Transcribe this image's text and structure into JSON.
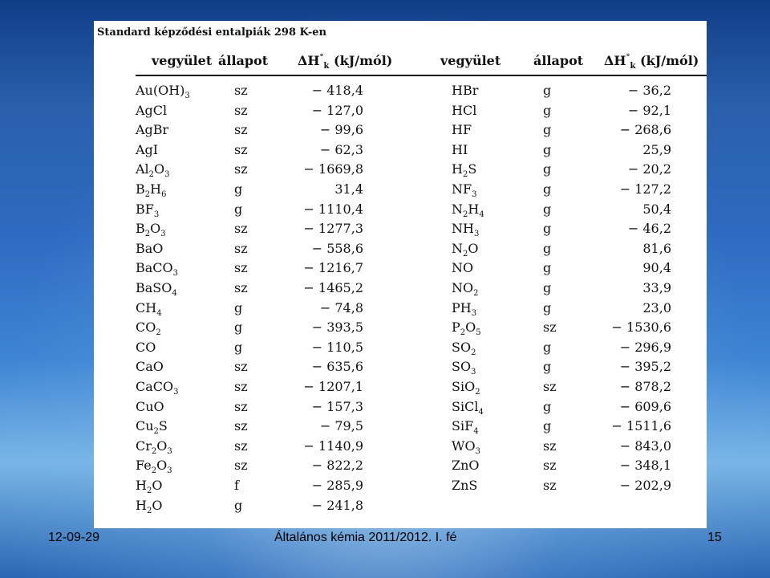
{
  "caption": "Standard képződési entalpiák 298 K-en",
  "headers": {
    "compound": "vegyület",
    "state": "állapot",
    "enthalpy": "ΔH°k (kJ/mól)"
  },
  "left_rows": [
    {
      "formula": "Au(OH)3",
      "state": "sz",
      "value": "− 418,4"
    },
    {
      "formula": "AgCl",
      "state": "sz",
      "value": "− 127,0"
    },
    {
      "formula": "AgBr",
      "state": "sz",
      "value": "− 99,6"
    },
    {
      "formula": "AgI",
      "state": "sz",
      "value": "− 62,3"
    },
    {
      "formula": "Al2O3",
      "state": "sz",
      "value": "− 1669,8"
    },
    {
      "formula": "B2H6",
      "state": "g",
      "value": "31,4"
    },
    {
      "formula": "BF3",
      "state": "g",
      "value": "− 1110,4"
    },
    {
      "formula": "B2O3",
      "state": "sz",
      "value": "− 1277,3"
    },
    {
      "formula": "BaO",
      "state": "sz",
      "value": "− 558,6"
    },
    {
      "formula": "BaCO3",
      "state": "sz",
      "value": "− 1216,7"
    },
    {
      "formula": "BaSO4",
      "state": "sz",
      "value": "− 1465,2"
    },
    {
      "formula": "CH4",
      "state": "g",
      "value": "− 74,8"
    },
    {
      "formula": "CO2",
      "state": "g",
      "value": "− 393,5"
    },
    {
      "formula": "CO",
      "state": "g",
      "value": "− 110,5"
    },
    {
      "formula": "CaO",
      "state": "sz",
      "value": "− 635,6"
    },
    {
      "formula": "CaCO3",
      "state": "sz",
      "value": "− 1207,1"
    },
    {
      "formula": "CuO",
      "state": "sz",
      "value": "− 157,3"
    },
    {
      "formula": "Cu2S",
      "state": "sz",
      "value": "− 79,5"
    },
    {
      "formula": "Cr2O3",
      "state": "sz",
      "value": "− 1140,9"
    },
    {
      "formula": "Fe2O3",
      "state": "sz",
      "value": "− 822,2"
    },
    {
      "formula": "H2O",
      "state": "f",
      "value": "− 285,9"
    },
    {
      "formula": "H2O",
      "state": "g",
      "value": "− 241,8"
    }
  ],
  "right_rows": [
    {
      "formula": "HBr",
      "state": "g",
      "value": "− 36,2"
    },
    {
      "formula": "HCl",
      "state": "g",
      "value": "− 92,1"
    },
    {
      "formula": "HF",
      "state": "g",
      "value": "− 268,6"
    },
    {
      "formula": "HI",
      "state": "g",
      "value": "25,9"
    },
    {
      "formula": "H2S",
      "state": "g",
      "value": "− 20,2"
    },
    {
      "formula": "NF3",
      "state": "g",
      "value": "− 127,2"
    },
    {
      "formula": "N2H4",
      "state": "g",
      "value": "50,4"
    },
    {
      "formula": "NH3",
      "state": "g",
      "value": "− 46,2"
    },
    {
      "formula": "N2O",
      "state": "g",
      "value": "81,6"
    },
    {
      "formula": "NO",
      "state": "g",
      "value": "90,4"
    },
    {
      "formula": "NO2",
      "state": "g",
      "value": "33,9"
    },
    {
      "formula": "PH3",
      "state": "g",
      "value": "23,0"
    },
    {
      "formula": "P2O5",
      "state": "sz",
      "value": "− 1530,6"
    },
    {
      "formula": "SO2",
      "state": "g",
      "value": "− 296,9"
    },
    {
      "formula": "SO3",
      "state": "g",
      "value": "− 395,2"
    },
    {
      "formula": "SiO2",
      "state": "sz",
      "value": "− 878,2"
    },
    {
      "formula": "SiCl4",
      "state": "g",
      "value": "− 609,6"
    },
    {
      "formula": "SiF4",
      "state": "g",
      "value": "− 1511,6"
    },
    {
      "formula": "WO3",
      "state": "sz",
      "value": "− 843,0"
    },
    {
      "formula": "ZnO",
      "state": "sz",
      "value": "− 348,1"
    },
    {
      "formula": "ZnS",
      "state": "sz",
      "value": "− 202,9"
    }
  ],
  "footer": {
    "date": "12-09-29",
    "course": "Általános kémia 2011/2012. I. fé",
    "page": "15"
  }
}
